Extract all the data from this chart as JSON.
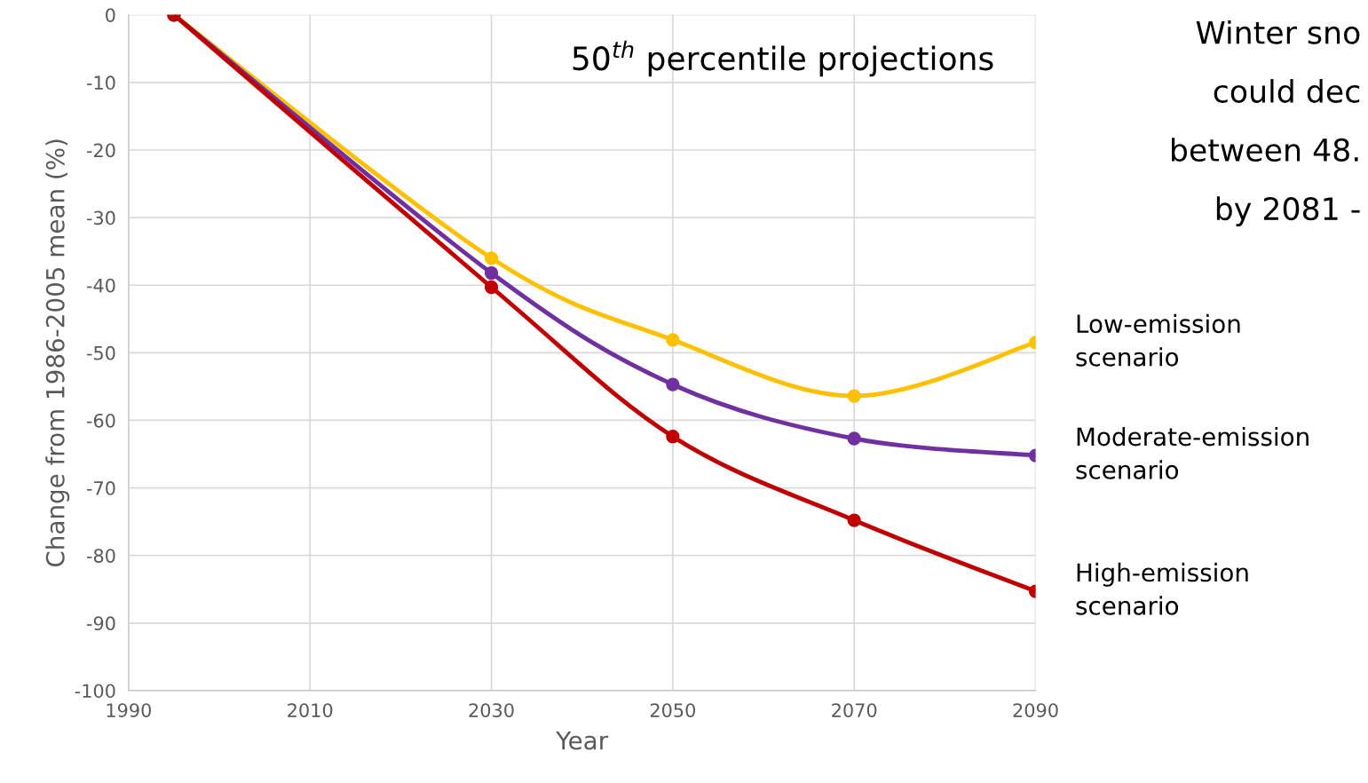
{
  "chart_data": {
    "type": "line",
    "title": "50$^{th}$ percentile projections",
    "xlabel": "Year",
    "ylabel": "Change from 1986-2005 mean (%)",
    "x": [
      1995,
      2030,
      2050,
      2070,
      2090
    ],
    "series": [
      {
        "name": "Low-emission\nscenario",
        "color": "#ffc000",
        "values": [
          0,
          -36,
          -48.1,
          -56.4,
          -48.5
        ]
      },
      {
        "name": "Moderate-emission\nscenario",
        "color": "#7030a0",
        "values": [
          0,
          -38.2,
          -54.7,
          -62.7,
          -65.2
        ]
      },
      {
        "name": "High-emission\nscenario",
        "color": "#c00000",
        "values": [
          0,
          -40.3,
          -62.4,
          -74.8,
          -85.3
        ]
      }
    ],
    "xlim": [
      1990,
      2090
    ],
    "xticks": [
      1990,
      2010,
      2030,
      2050,
      2070,
      2090
    ],
    "ylim": [
      -100,
      0
    ],
    "yticks": [
      0,
      -10,
      -20,
      -30,
      -40,
      -50,
      -60,
      -70,
      -80,
      -90,
      -100
    ],
    "grid": true,
    "marker": "circle",
    "line_style": "solid",
    "legend": false,
    "annotations": [
      "Winter sno",
      "could dec",
      "between 48.",
      "by 2081 -"
    ]
  }
}
